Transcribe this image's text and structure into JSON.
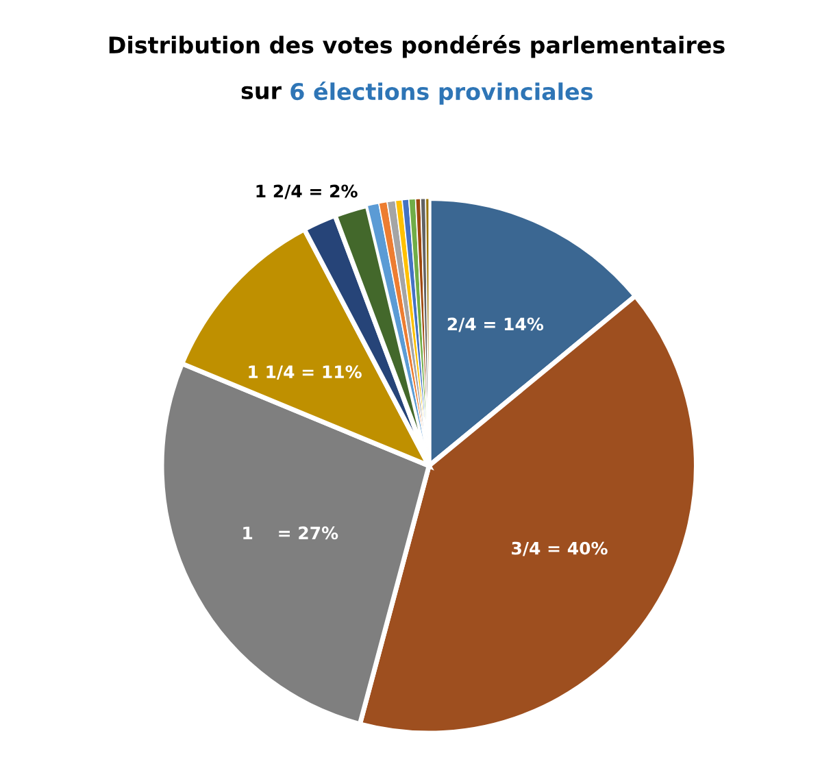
{
  "chart_data": {
    "type": "pie",
    "title": "Distribution des votes pondérés parlementaires",
    "subtitle": "sur 6 élections provinciales",
    "categories": [
      null,
      null,
      null,
      null,
      null,
      null,
      null,
      null,
      null,
      null,
      null,
      null,
      null,
      null,
      null
    ],
    "values": [
      14,
      40,
      27,
      11,
      2,
      2,
      0.7,
      0.5,
      0.5,
      0.4,
      0.4,
      0.4,
      0.3,
      0.3,
      0.2
    ],
    "value_labels": [
      "2/4 = 14%",
      "3/4 = 40%",
      "1    = 27%",
      "1 1/4 = 11%",
      "1 2/4 = 2%",
      null,
      null,
      null,
      null,
      null,
      null,
      null,
      null,
      null,
      null
    ],
    "colors": [
      "#3b6792",
      "#9e4f1f",
      "#7f7f7f",
      "#bf9000",
      "#264478",
      "#43682b",
      "#5b9bd5",
      "#ed7d31",
      "#a5a5a5",
      "#ffc000",
      "#4472c4",
      "#70ad47",
      "#9e480e",
      "#636363",
      "#997300"
    ],
    "legend": false
  }
}
